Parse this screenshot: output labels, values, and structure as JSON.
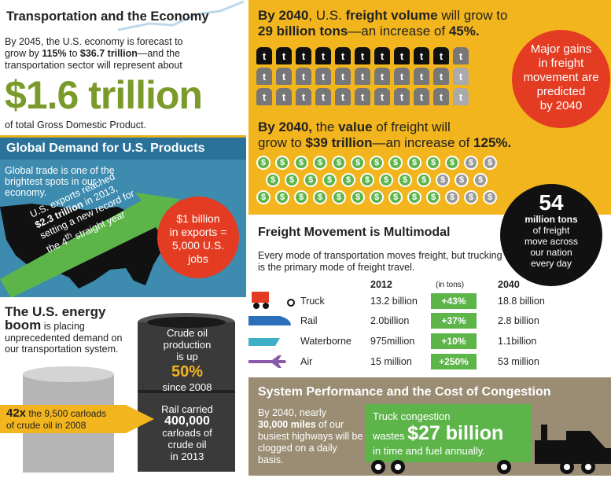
{
  "economy": {
    "title": "Transportation and the Economy",
    "line1": "By 2045, the U.S. economy is forecast to",
    "line2_pre": "grow by ",
    "line2_pct": "115%",
    "line2_mid": " to ",
    "line2_amt": "$36.7 trillion",
    "line2_post": "—and the",
    "line3": "transportation sector will represent about",
    "big": "$1.6 trillion",
    "foot": "of total Gross Domestic Product."
  },
  "global": {
    "title": "Global Demand for U.S. Products",
    "text": "Global trade is one of the brightest spots in our economy.",
    "arrow_l1": "U.S. exports reached",
    "arrow_l2a": "$2.3 trillion",
    "arrow_l2b": " in 2013,",
    "arrow_l3": "setting a new record for",
    "arrow_l4a": "the 4",
    "arrow_l4sup": "th",
    "arrow_l4b": " straight year",
    "circle_l1": "$1 billion",
    "circle_l2": "in exports =",
    "circle_l3": "5,000 U.S.",
    "circle_l4": "jobs"
  },
  "energy": {
    "title_l1": "The U.S. energy",
    "title_l2": "boom",
    "title_l2b": " is placing",
    "text": "unprecedented demand on our transportation system.",
    "arrow_big": "42x",
    "arrow_l1": " the 9,500 carloads",
    "arrow_l2": "of crude oil in 2008",
    "barrel_l1": "Crude oil",
    "barrel_l2": "production",
    "barrel_l3": "is up",
    "barrel_pct": "50%",
    "barrel_l4": "since 2008",
    "barrel_b1": "Rail carried",
    "barrel_b2": "400,000",
    "barrel_b3": "carloads of",
    "barrel_b4": "crude oil",
    "barrel_b5": "in 2013"
  },
  "freight": {
    "l1a": "By 2040",
    "l1b": ", U.S. ",
    "l1c": "freight volume",
    "l1d": " will grow to",
    "l2a": "29 billion tons",
    "l2b": "—an increase of ",
    "l2c": "45%.",
    "v1a": "By 2040,",
    "v1b": " the ",
    "v1c": "value",
    "v1d": " of freight will",
    "v2a": "grow to ",
    "v2b": "$39 trillion",
    "v2c": "—an increase of ",
    "v2d": "125%.",
    "weight_glyph": "t",
    "coin_glyph": "$",
    "red_l1": "Major gains",
    "red_l2": "in freight",
    "red_l3": "movement are",
    "red_l4": "predicted",
    "red_l5": "by 2040",
    "black_n": "54",
    "black_l1": "million tons",
    "black_l2": "of freight",
    "black_l3": "move across",
    "black_l4": "our nation",
    "black_l5": "every day"
  },
  "multimodal": {
    "title": "Freight Movement is Multimodal",
    "desc": "Every mode of transportation moves freight, but trucking is the primary mode of freight travel.",
    "h2012": "2012",
    "hunit": "(in tons)",
    "h2040": "2040",
    "rows": [
      {
        "mode": "Truck",
        "v2012": "13.2 billion",
        "pct": "+43%",
        "v2040": "18.8 billion"
      },
      {
        "mode": "Rail",
        "v2012": "2.0billion",
        "pct": "+37%",
        "v2040": "2.8 billion"
      },
      {
        "mode": "Waterborne",
        "v2012": "975million",
        "pct": "+10%",
        "v2040": "1.1billion"
      },
      {
        "mode": "Air",
        "v2012": "15 million",
        "pct": "+250%",
        "v2040": "53 million"
      }
    ]
  },
  "congestion": {
    "title": "System Performance and the Cost of Congestion",
    "d1": "By 2040, nearly",
    "d2": "30,000 miles",
    "d3": " of our busiest highways will be clogged on a daily basis.",
    "g1": "Truck congestion",
    "g2a": "wastes ",
    "g2b": "$27 billion",
    "g3": "in time and fuel annually."
  },
  "colors": {
    "yellow": "#f2b51d",
    "red": "#e33c22",
    "green": "#5db54a",
    "blue": "#3e8bb0",
    "olive": "#7a9a2a",
    "taupe": "#9a8d73"
  }
}
